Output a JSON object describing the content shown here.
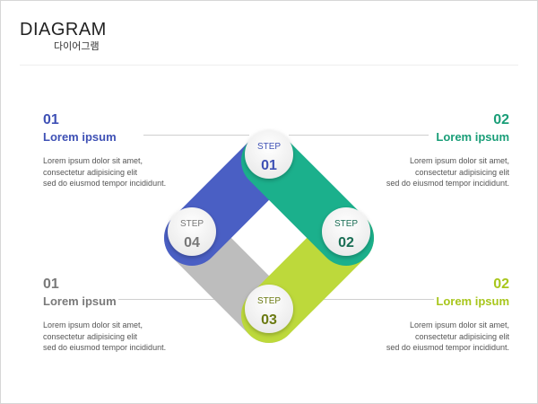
{
  "header": {
    "title": "DIAGRAM",
    "subtitle": "다이어그램"
  },
  "blocks": [
    {
      "num": "01",
      "heading": "Lorem ipsum",
      "color": "#3f51b5",
      "lines": [
        "Lorem ipsum dolor sit amet,",
        "consectetur adipisicing elit",
        "sed do eiusmod tempor incididunt."
      ]
    },
    {
      "num": "02",
      "heading": "Lorem ipsum",
      "color": "#1a9e78",
      "lines": [
        "Lorem ipsum dolor sit amet,",
        "consectetur adipisicing elit",
        "sed do eiusmod tempor incididunt."
      ]
    },
    {
      "num": "01",
      "heading": "Lorem ipsum",
      "color": "#7a7a7a",
      "lines": [
        "Lorem ipsum dolor sit amet,",
        "consectetur adipisicing elit",
        "sed do eiusmod tempor incididunt."
      ]
    },
    {
      "num": "02",
      "heading": "Lorem ipsum",
      "color": "#a8c61c",
      "lines": [
        "Lorem ipsum dolor sit amet,",
        "consectetur adipisicing elit",
        "sed do eiusmod tempor incididunt."
      ]
    }
  ],
  "steps": [
    {
      "label": "STEP",
      "num": "01",
      "color": "#4a5fc4",
      "text_color": "#3f51b5"
    },
    {
      "label": "STEP",
      "num": "02",
      "color": "#1bb08c",
      "text_color": "#1a6e55"
    },
    {
      "label": "STEP",
      "num": "03",
      "color": "#bdd93b",
      "text_color": "#6b7a12"
    },
    {
      "label": "STEP",
      "num": "04",
      "color": "#bdbdbd",
      "text_color": "#777777"
    }
  ]
}
